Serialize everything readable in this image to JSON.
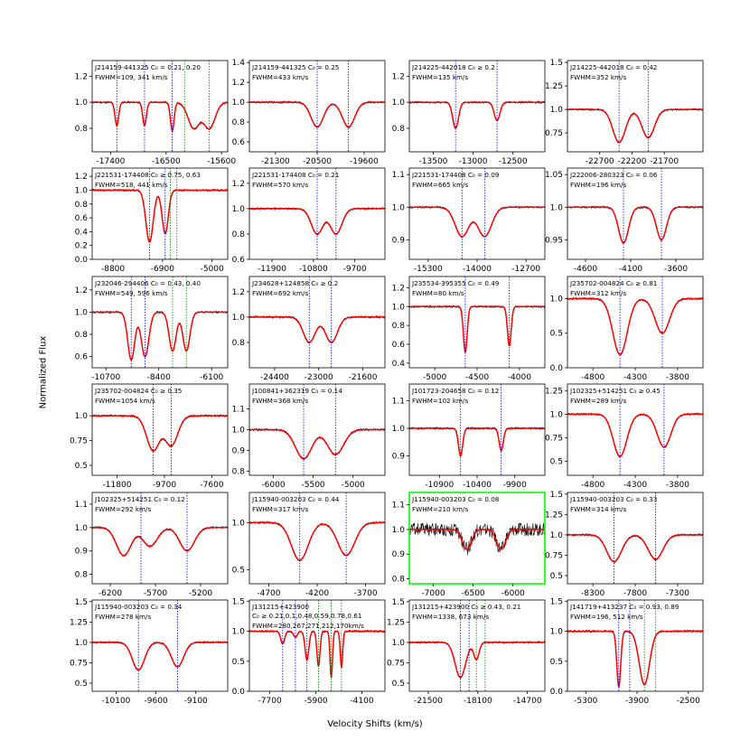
{
  "figure": {
    "ylabel": "Normalized Flux",
    "xlabel": "Velocity Shifts (km/s)",
    "colors": {
      "data": "#000000",
      "model": "#ff0000",
      "line1": "#0000ff",
      "line2": "#008000",
      "highlight": "#00ff00"
    }
  },
  "chart_data": [
    {
      "type": "line",
      "name": "J214159-441325",
      "label": "J214159-441325  C₀ = 0.21, 0.20",
      "fwhm": "FWHM=109, 341 km/s",
      "xlim": [
        -17700,
        -15500
      ],
      "ylim": [
        0.62,
        1.32
      ],
      "xticks": [
        -17400,
        -16500,
        -15600
      ],
      "yticks": [
        0.8,
        1.0,
        1.2
      ],
      "abs": [
        [
          -17300,
          0.18,
          70
        ],
        [
          -16850,
          0.18,
          70
        ],
        [
          -16400,
          0.22,
          70
        ],
        [
          -16050,
          0.2,
          220
        ],
        [
          -15800,
          0.2,
          220
        ]
      ],
      "blue": [
        -17300,
        -16850,
        -16400
      ],
      "green": [
        -16200,
        -15800
      ],
      "x": [
        -17700,
        -15500
      ],
      "y": [
        1.0,
        1.0
      ]
    },
    {
      "type": "line",
      "name": "J214159-441325",
      "label": "J214159-441325  C₀ = 0.25",
      "fwhm": "FWHM=433 km/s",
      "xlim": [
        -21800,
        -19200
      ],
      "ylim": [
        0.5,
        1.42
      ],
      "xticks": [
        -21300,
        -20500,
        -19600
      ],
      "yticks": [
        0.6,
        0.8,
        1.0,
        1.2,
        1.4
      ],
      "abs": [
        [
          -20500,
          0.25,
          280
        ],
        [
          -19900,
          0.25,
          280
        ]
      ],
      "blue": [
        -20500,
        -19900
      ],
      "green": [],
      "x": [
        -21800,
        -19200
      ],
      "y": [
        1.0,
        1.0
      ]
    },
    {
      "type": "line",
      "name": "J214225-442018",
      "label": "J214225-442018  C₀ ≥ 0.2",
      "fwhm": "FWHM=135 km/s",
      "xlim": [
        -13800,
        -12100
      ],
      "ylim": [
        0.62,
        1.32
      ],
      "xticks": [
        -13500,
        -13000,
        -12500
      ],
      "yticks": [
        0.8,
        1.0,
        1.2
      ],
      "abs": [
        [
          -13220,
          0.2,
          85
        ],
        [
          -12700,
          0.14,
          85
        ]
      ],
      "blue": [
        -13220,
        -12700
      ],
      "green": [],
      "x": [
        -13800,
        -12100
      ],
      "y": [
        1.0,
        1.0
      ]
    },
    {
      "type": "line",
      "name": "J214225-442018",
      "label": "J214225-442018  C₀ = 0.42",
      "fwhm": "FWHM=352 km/s",
      "xlim": [
        -23200,
        -21100
      ],
      "ylim": [
        0.55,
        1.52
      ],
      "xticks": [
        -22700,
        -22200,
        -21700
      ],
      "yticks": [
        0.75,
        1.0,
        1.25,
        1.5
      ],
      "abs": [
        [
          -22400,
          0.35,
          230
        ],
        [
          -21950,
          0.3,
          230
        ]
      ],
      "blue": [
        -22400,
        -21950
      ],
      "green": [],
      "x": [
        -23200,
        -21100
      ],
      "y": [
        1.0,
        1.0
      ]
    },
    {
      "type": "line",
      "name": "J221531-174408",
      "label": "J221531-174408  C₀ ≥ 0.75, 0.63",
      "fwhm": "FWHM=518, 441 km/s",
      "xlim": [
        -9600,
        -4400
      ],
      "ylim": [
        0.0,
        1.32
      ],
      "xticks": [
        -8800,
        -6900,
        -5000
      ],
      "yticks": [
        0.0,
        0.2,
        0.4,
        0.6,
        0.8,
        1.0,
        1.2
      ],
      "abs": [
        [
          -7400,
          0.75,
          330
        ],
        [
          -6800,
          0.63,
          280
        ]
      ],
      "blue": [
        -7400,
        -6800
      ],
      "green": [
        -6600,
        -6350
      ],
      "x": [
        -9600,
        -4400
      ],
      "y": [
        1.0,
        1.0
      ]
    },
    {
      "type": "line",
      "name": "J221531-174408",
      "label": "J221531-174408  C₀ = 0.21",
      "fwhm": "FWHM=570 km/s",
      "xlim": [
        -12500,
        -8900
      ],
      "ylim": [
        0.6,
        1.32
      ],
      "xticks": [
        -11900,
        -10800,
        -9700
      ],
      "yticks": [
        0.6,
        0.8,
        1.0,
        1.2
      ],
      "abs": [
        [
          -10700,
          0.2,
          370
        ],
        [
          -10200,
          0.2,
          370
        ]
      ],
      "blue": [
        -10700,
        -10200
      ],
      "green": [],
      "x": [
        -12500,
        -8900
      ],
      "y": [
        1.0,
        1.0
      ]
    },
    {
      "type": "line",
      "name": "J221531-174408",
      "label": "J221531-174408  C₀ = 0.09",
      "fwhm": "FWHM=665 km/s",
      "xlim": [
        -15800,
        -12200
      ],
      "ylim": [
        0.84,
        1.12
      ],
      "xticks": [
        -15300,
        -14000,
        -12700
      ],
      "yticks": [
        0.9,
        1.0,
        1.1
      ],
      "abs": [
        [
          -14400,
          0.09,
          430
        ],
        [
          -13800,
          0.09,
          430
        ]
      ],
      "blue": [
        -14400,
        -13800
      ],
      "green": [],
      "x": [
        -15800,
        -12200
      ],
      "y": [
        1.0,
        1.0
      ]
    },
    {
      "type": "line",
      "name": "J222006-280323",
      "label": "J222006-280323  C₀ = 0.06",
      "fwhm": "FWHM=196 km/s",
      "xlim": [
        -4800,
        -3300
      ],
      "ylim": [
        0.92,
        1.06
      ],
      "xticks": [
        -4600,
        -4100,
        -3600
      ],
      "yticks": [
        0.95,
        1.0,
        1.05
      ],
      "abs": [
        [
          -4180,
          0.055,
          130
        ],
        [
          -3760,
          0.05,
          130
        ]
      ],
      "blue": [
        -4180,
        -3760
      ],
      "green": [],
      "x": [
        -4800,
        -3300
      ],
      "y": [
        1.0,
        1.0
      ]
    },
    {
      "type": "line",
      "name": "J232046-294406",
      "label": "J232046-294406  C₀ = 0.43, 0.40",
      "fwhm": "FWHM=549, 596 km/s",
      "xlim": [
        -11300,
        -5400
      ],
      "ylim": [
        0.5,
        1.32
      ],
      "xticks": [
        -10700,
        -8400,
        -6100
      ],
      "yticks": [
        0.6,
        0.8,
        1.0,
        1.2
      ],
      "abs": [
        [
          -9600,
          0.43,
          360
        ],
        [
          -9000,
          0.4,
          390
        ],
        [
          -7800,
          0.35,
          360
        ],
        [
          -7200,
          0.35,
          360
        ]
      ],
      "blue": [
        -9600,
        -9000
      ],
      "green": [
        -7800,
        -7200
      ],
      "x": [
        -11300,
        -5400
      ],
      "y": [
        1.0,
        1.0
      ]
    },
    {
      "type": "line",
      "name": "J234628+124858",
      "label": "J234628+124858  C₀ ≥ 0.2",
      "fwhm": "FWHM=692 km/s",
      "xlim": [
        -25200,
        -20900
      ],
      "ylim": [
        0.6,
        1.32
      ],
      "xticks": [
        -24400,
        -23000,
        -21600
      ],
      "yticks": [
        0.8,
        1.0,
        1.2
      ],
      "abs": [
        [
          -23300,
          0.2,
          450
        ],
        [
          -22600,
          0.2,
          450
        ]
      ],
      "blue": [
        -23300,
        -22600
      ],
      "green": [],
      "x": [
        -25200,
        -20900
      ],
      "y": [
        1.0,
        1.0
      ]
    },
    {
      "type": "line",
      "name": "J235534-395355",
      "label": "J235534-395355  C₀ = 0.49",
      "fwhm": "FWHM=80 km/s",
      "xlim": [
        -5300,
        -3700
      ],
      "ylim": [
        0.35,
        1.32
      ],
      "xticks": [
        -5000,
        -4500,
        -4000
      ],
      "yticks": [
        0.4,
        0.6,
        0.8,
        1.0,
        1.2
      ],
      "abs": [
        [
          -4640,
          0.49,
          52
        ],
        [
          -4120,
          0.42,
          52
        ]
      ],
      "blue": [
        -4640,
        -4120
      ],
      "green": [],
      "x": [
        -5300,
        -3700
      ],
      "y": [
        1.0,
        1.0
      ]
    },
    {
      "type": "line",
      "name": "J235702-004824",
      "label": "J235702-004824  C₀ ≥ 0.81",
      "fwhm": "FWHM=312 km/s",
      "xlim": [
        -5100,
        -3500
      ],
      "ylim": [
        0.0,
        1.32
      ],
      "xticks": [
        -4800,
        -4300,
        -3800
      ],
      "yticks": [
        0.0,
        0.5,
        1.0
      ],
      "abs": [
        [
          -4480,
          0.81,
          200
        ],
        [
          -3980,
          0.5,
          200
        ]
      ],
      "blue": [
        -4480,
        -3980
      ],
      "green": [],
      "x": [
        -5100,
        -3500
      ],
      "y": [
        1.0,
        1.0
      ]
    },
    {
      "type": "line",
      "name": "J235702-004824",
      "label": "J235702-004824  C₀ ≥ 0.35",
      "fwhm": "FWHM=1054 km/s",
      "xlim": [
        -12900,
        -6900
      ],
      "ylim": [
        0.4,
        1.32
      ],
      "xticks": [
        -11800,
        -9700,
        -7600
      ],
      "yticks": [
        0.5,
        0.75,
        1.0
      ],
      "abs": [
        [
          -10200,
          0.35,
          680
        ],
        [
          -9400,
          0.3,
          680
        ]
      ],
      "blue": [
        -10200,
        -9400
      ],
      "green": [],
      "x": [
        -12900,
        -6900
      ],
      "y": [
        1.0,
        1.0
      ]
    },
    {
      "type": "line",
      "name": "J100841+362319",
      "label": "J100841+362319  C₀ = 0.14",
      "fwhm": "FWHM=368 km/s",
      "xlim": [
        -6300,
        -4600
      ],
      "ylim": [
        0.78,
        1.22
      ],
      "xticks": [
        -6000,
        -5500,
        -5000
      ],
      "yticks": [
        0.8,
        0.9,
        1.0,
        1.1
      ],
      "abs": [
        [
          -5620,
          0.14,
          240
        ],
        [
          -5220,
          0.12,
          240
        ]
      ],
      "blue": [
        -5620,
        -5220
      ],
      "green": [],
      "x": [
        -6300,
        -4600
      ],
      "y": [
        1.0,
        1.0
      ]
    },
    {
      "type": "line",
      "name": "J101723-204658",
      "label": "J101723-204658  C₀ = 0.12",
      "fwhm": "FWHM=102 km/s",
      "xlim": [
        -11300,
        -9500
      ],
      "ylim": [
        0.83,
        1.16
      ],
      "xticks": [
        -10900,
        -10400,
        -9900
      ],
      "yticks": [
        0.9,
        1.0,
        1.1
      ],
      "abs": [
        [
          -10620,
          0.1,
          66
        ],
        [
          -10080,
          0.08,
          66
        ]
      ],
      "blue": [
        -10620,
        -10080
      ],
      "green": [],
      "x": [
        -11300,
        -9500
      ],
      "y": [
        1.0,
        1.0
      ]
    },
    {
      "type": "line",
      "name": "J102325+514251",
      "label": "J102325+514251  C₀ ≥ 0.45",
      "fwhm": "FWHM=289 km/s",
      "xlim": [
        -5100,
        -3500
      ],
      "ylim": [
        0.35,
        1.32
      ],
      "xticks": [
        -4800,
        -4300,
        -3800
      ],
      "yticks": [
        0.5,
        0.75,
        1.0,
        1.25
      ],
      "abs": [
        [
          -4480,
          0.45,
          190
        ],
        [
          -3960,
          0.35,
          190
        ]
      ],
      "blue": [
        -4480,
        -3960
      ],
      "green": [],
      "x": [
        -5100,
        -3500
      ],
      "y": [
        1.0,
        1.0
      ]
    },
    {
      "type": "line",
      "name": "J102325+514251",
      "label": "J102325+514251  C₀ = 0.12",
      "fwhm": "FWHM=292 km/s",
      "xlim": [
        -6400,
        -4900
      ],
      "ylim": [
        0.76,
        1.15
      ],
      "xticks": [
        -6200,
        -5700,
        -5200
      ],
      "yticks": [
        0.8,
        0.9,
        1.0,
        1.1
      ],
      "abs": [
        [
          -6050,
          0.12,
          190
        ],
        [
          -5760,
          0.08,
          190
        ],
        [
          -5350,
          0.1,
          190
        ]
      ],
      "blue": [
        -5860,
        -5350
      ],
      "green": [],
      "x": [
        -6400,
        -4900
      ],
      "y": [
        1.0,
        1.0
      ]
    },
    {
      "type": "line",
      "name": "J115940-003203",
      "label": "J115940-003203  C₀ = 0.44",
      "fwhm": "FWHM=317 km/s",
      "xlim": [
        -4900,
        -3500
      ],
      "ylim": [
        0.35,
        1.32
      ],
      "xticks": [
        -4700,
        -4200,
        -3700
      ],
      "yticks": [
        0.5,
        1.0
      ],
      "abs": [
        [
          -4380,
          0.4,
          205
        ],
        [
          -3900,
          0.35,
          205
        ]
      ],
      "blue": [
        -4380,
        -3900
      ],
      "green": [],
      "x": [
        -4900,
        -3500
      ],
      "y": [
        1.0,
        1.0
      ]
    },
    {
      "type": "line",
      "name": "J115940-003203",
      "label": "J115940-003203  C₀ = 0.08",
      "fwhm": "FWHM=210 km/s",
      "xlim": [
        -7300,
        -5600
      ],
      "ylim": [
        0.78,
        1.15
      ],
      "xticks": [
        -7000,
        -6500,
        -6000
      ],
      "yticks": [
        0.8,
        0.9,
        1.0,
        1.1
      ],
      "abs": [
        [
          -6580,
          0.08,
          135
        ],
        [
          -6150,
          0.08,
          135
        ]
      ],
      "blue": [],
      "green": [],
      "x": [
        -7300,
        -5600
      ],
      "y": [
        1.0,
        1.0
      ],
      "highlight": true
    },
    {
      "type": "line",
      "name": "J115940-003203",
      "label": "J115940-003203  C₀ = 0.33",
      "fwhm": "FWHM=314 km/s",
      "xlim": [
        -8600,
        -7000
      ],
      "ylim": [
        0.4,
        1.52
      ],
      "xticks": [
        -8300,
        -7800,
        -7300
      ],
      "yticks": [
        0.5,
        0.75,
        1.0,
        1.25,
        1.5
      ],
      "abs": [
        [
          -8050,
          0.33,
          205
        ],
        [
          -7560,
          0.3,
          205
        ]
      ],
      "blue": [
        -8050,
        -7560
      ],
      "green": [],
      "x": [
        -8600,
        -7000
      ],
      "y": [
        1.0,
        1.0
      ]
    },
    {
      "type": "line",
      "name": "J115940-003203",
      "label": "J115940-003203  C₀ = 0.34",
      "fwhm": "FWHM=278 km/s",
      "xlim": [
        -10400,
        -8700
      ],
      "ylim": [
        0.4,
        1.52
      ],
      "xticks": [
        -10100,
        -9600,
        -9100
      ],
      "yticks": [
        0.5,
        0.75,
        1.0,
        1.25,
        1.5
      ],
      "abs": [
        [
          -9820,
          0.34,
          180
        ],
        [
          -9330,
          0.3,
          180
        ]
      ],
      "blue": [
        -9820,
        -9330
      ],
      "green": [],
      "x": [
        -10400,
        -8700
      ],
      "y": [
        1.0,
        1.0
      ]
    },
    {
      "type": "line",
      "name": "J131215+423900",
      "label": "J131215+423900",
      "label2": "C₀ ≥ 0.21,0.1,0.48,0.59,0.78,0.61",
      "fwhm": "FWHM=280,267,271,212,170km/s",
      "xlim": [
        -8500,
        -3200
      ],
      "ylim": [
        0.0,
        1.52
      ],
      "xticks": [
        -7700,
        -5900,
        -4100
      ],
      "yticks": [
        0.0,
        0.5,
        1.0,
        1.5
      ],
      "abs": [
        [
          -7200,
          0.21,
          180
        ],
        [
          -6700,
          0.1,
          175
        ],
        [
          -6250,
          0.48,
          175
        ],
        [
          -5800,
          0.59,
          140
        ],
        [
          -5300,
          0.78,
          110
        ],
        [
          -4900,
          0.61,
          110
        ]
      ],
      "blue": [
        -7200,
        -6700,
        -6250
      ],
      "green": [
        -5800,
        -5300,
        -4900
      ],
      "x": [
        -8500,
        -3200
      ],
      "y": [
        1.0,
        1.0
      ]
    },
    {
      "type": "line",
      "name": "J131215+423900",
      "label": "J131215+423900  C₀ ≥ 0.43, 0.21",
      "fwhm": "FWHM=1338, 673 km/s",
      "xlim": [
        -22800,
        -13500
      ],
      "ylim": [
        0.4,
        1.52
      ],
      "xticks": [
        -21500,
        -18100,
        -14700
      ],
      "yticks": [
        0.5,
        0.75,
        1.0,
        1.25,
        1.5
      ],
      "abs": [
        [
          -19300,
          0.43,
          850
        ],
        [
          -18200,
          0.21,
          430
        ]
      ],
      "blue": [
        -19300,
        -18700
      ],
      "green": [
        -18200,
        -17600
      ],
      "x": [
        -22800,
        -13500
      ],
      "y": [
        1.0,
        1.0
      ]
    },
    {
      "type": "line",
      "name": "J141719+413237",
      "label": "J141719+413237  C₀ = 0.93, 0.89",
      "fwhm": "FWHM=196, 512 km/s",
      "xlim": [
        -5800,
        -2100
      ],
      "ylim": [
        0.0,
        1.52
      ],
      "xticks": [
        -5300,
        -3900,
        -2500
      ],
      "yticks": [
        0.0,
        0.5,
        1.0,
        1.5
      ],
      "abs": [
        [
          -4400,
          0.93,
          125
        ],
        [
          -3700,
          0.89,
          330
        ]
      ],
      "blue": [
        -4400,
        -4100
      ],
      "green": [
        -3700,
        -3400
      ],
      "x": [
        -5800,
        -2100
      ],
      "y": [
        1.0,
        1.0
      ]
    }
  ]
}
